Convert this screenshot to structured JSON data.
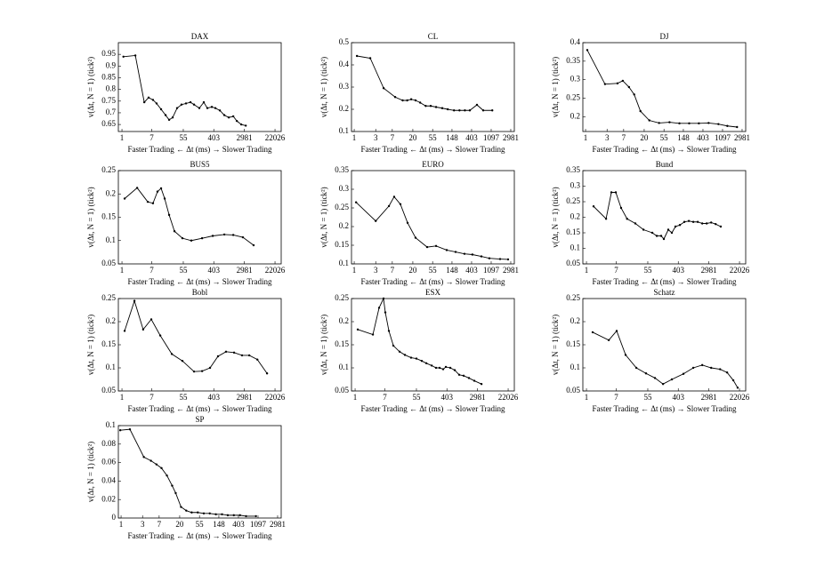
{
  "chart_data": [
    {
      "type": "line",
      "title": "DAX",
      "xscale": "log",
      "color": "#000000",
      "x": [
        1.1,
        2.4,
        4.3,
        5.7,
        7.6,
        9.6,
        12.9,
        17.3,
        21.8,
        27.5,
        36.7,
        49,
        65.7,
        88,
        111,
        157,
        210,
        265,
        355,
        448,
        600,
        803,
        1075,
        1440,
        1818,
        2430,
        3260
      ],
      "values": [
        0.94,
        0.945,
        0.745,
        0.765,
        0.755,
        0.74,
        0.715,
        0.69,
        0.67,
        0.68,
        0.72,
        0.735,
        0.74,
        0.745,
        0.735,
        0.72,
        0.745,
        0.72,
        0.725,
        0.72,
        0.71,
        0.69,
        0.68,
        0.685,
        0.665,
        0.65,
        0.645
      ],
      "xlim": [
        0.79,
        33000
      ],
      "xticks": [
        1,
        7,
        55,
        403,
        2981,
        22026
      ],
      "ylim": [
        0.62,
        1.0
      ],
      "yticks": [
        0.65,
        0.7,
        0.75,
        0.8,
        0.85,
        0.9,
        0.95
      ],
      "x_label": "Faster Trading ← Δt (ms) → Slower Trading",
      "y_label": "v(Δt, N = 1) (tick²)"
    },
    {
      "type": "line",
      "title": "CL",
      "xscale": "log",
      "color": "#000000",
      "x": [
        1.15,
        2.27,
        4.5,
        8.1,
        11.9,
        15,
        18.4,
        23,
        29.1,
        38.6,
        49.9,
        65.6,
        90,
        119,
        164,
        217,
        286,
        368,
        530,
        730,
        1160
      ],
      "values": [
        0.44,
        0.43,
        0.295,
        0.255,
        0.24,
        0.24,
        0.245,
        0.24,
        0.23,
        0.215,
        0.215,
        0.21,
        0.205,
        0.2,
        0.195,
        0.195,
        0.195,
        0.195,
        0.22,
        0.195,
        0.195
      ],
      "xlim": [
        0.87,
        3580
      ],
      "xticks": [
        1,
        3,
        7,
        20,
        55,
        148,
        403,
        1097,
        2981
      ],
      "ylim": [
        0.1,
        0.5
      ],
      "yticks": [
        0.1,
        0.2,
        0.3,
        0.4,
        0.5
      ],
      "x_label": "Faster Trading ← Δt (ms) → Slower Trading",
      "y_label": "v(Δt, N = 1) (tick²)"
    },
    {
      "type": "line",
      "title": "DJ",
      "xscale": "log",
      "color": "#000000",
      "x": [
        1.09,
        2.7,
        5.1,
        6.7,
        9.2,
        12,
        16.5,
        26,
        42.8,
        73,
        121,
        199,
        327,
        538,
        888,
        1400,
        2300
      ],
      "values": [
        0.38,
        0.288,
        0.29,
        0.297,
        0.28,
        0.26,
        0.215,
        0.19,
        0.183,
        0.185,
        0.182,
        0.182,
        0.182,
        0.183,
        0.18,
        0.175,
        0.172
      ],
      "xlim": [
        0.87,
        3580
      ],
      "xticks": [
        1,
        3,
        7,
        20,
        55,
        148,
        403,
        1097,
        2981
      ],
      "ylim": [
        0.16,
        0.4
      ],
      "yticks": [
        0.2,
        0.25,
        0.3,
        0.35,
        0.4
      ],
      "x_label": "Faster Trading ← Δt (ms) → Slower Trading",
      "y_label": "v(Δt, N = 1) (tick²)"
    },
    {
      "type": "line",
      "title": "BUS5",
      "xscale": "log",
      "color": "#000000",
      "x": [
        1.19,
        2.7,
        5.4,
        7.6,
        10.2,
        12.9,
        16.3,
        21.8,
        30.9,
        52,
        93,
        188,
        377,
        803,
        1440,
        2700,
        5440
      ],
      "values": [
        0.19,
        0.213,
        0.183,
        0.18,
        0.205,
        0.212,
        0.19,
        0.155,
        0.12,
        0.105,
        0.1,
        0.105,
        0.11,
        0.113,
        0.112,
        0.107,
        0.09
      ],
      "xlim": [
        0.79,
        33000
      ],
      "xticks": [
        1,
        7,
        55,
        403,
        2981,
        22026
      ],
      "ylim": [
        0.05,
        0.25
      ],
      "yticks": [
        0.05,
        0.1,
        0.15,
        0.2,
        0.25
      ],
      "x_label": "Faster Trading ← Δt (ms) → Slower Trading",
      "y_label": "v(Δt, N = 1) (tick²)"
    },
    {
      "type": "line",
      "title": "EURO",
      "xscale": "log",
      "color": "#000000",
      "x": [
        1.1,
        3.0,
        5.9,
        7.7,
        10.6,
        15.3,
        23,
        41.6,
        65.6,
        113,
        178,
        280,
        420,
        665,
        1000,
        1730,
        2600
      ],
      "values": [
        0.265,
        0.215,
        0.255,
        0.28,
        0.26,
        0.21,
        0.17,
        0.145,
        0.148,
        0.137,
        0.132,
        0.127,
        0.125,
        0.12,
        0.115,
        0.113,
        0.112
      ],
      "xlim": [
        0.87,
        3580
      ],
      "xticks": [
        1,
        3,
        7,
        20,
        55,
        148,
        403,
        1097,
        2981
      ],
      "ylim": [
        0.1,
        0.35
      ],
      "yticks": [
        0.1,
        0.15,
        0.2,
        0.25,
        0.3,
        0.35
      ],
      "x_label": "Faster Trading ← Δt (ms) → Slower Trading",
      "y_label": "v(Δt, N = 1) (tick²)"
    },
    {
      "type": "line",
      "title": "Bund",
      "xscale": "log",
      "color": "#000000",
      "x": [
        1.59,
        3.6,
        5.1,
        6.8,
        9.6,
        14.2,
        24.4,
        41.5,
        73.9,
        98.8,
        132,
        157,
        210,
        265,
        335,
        448,
        600,
        803,
        1075,
        1440,
        1930,
        2580,
        3460,
        4630,
        6470
      ],
      "values": [
        0.235,
        0.195,
        0.28,
        0.28,
        0.23,
        0.195,
        0.18,
        0.16,
        0.15,
        0.14,
        0.14,
        0.13,
        0.16,
        0.15,
        0.17,
        0.175,
        0.185,
        0.188,
        0.185,
        0.185,
        0.18,
        0.18,
        0.183,
        0.178,
        0.17
      ],
      "xlim": [
        0.79,
        33000
      ],
      "xticks": [
        1,
        7,
        55,
        403,
        2981,
        22026
      ],
      "ylim": [
        0.05,
        0.35
      ],
      "yticks": [
        0.05,
        0.1,
        0.15,
        0.2,
        0.25,
        0.3,
        0.35
      ],
      "x_label": "Faster Trading ← Δt (ms) → Slower Trading",
      "y_label": "v(Δt, N = 1) (tick²)"
    },
    {
      "type": "line",
      "title": "Bobl",
      "xscale": "log",
      "color": "#000000",
      "x": [
        1.19,
        2.26,
        4.0,
        6.8,
        12.2,
        26,
        52,
        111,
        188,
        316,
        531,
        897,
        1520,
        2560,
        4100,
        6940,
        13100
      ],
      "values": [
        0.18,
        0.245,
        0.183,
        0.205,
        0.17,
        0.13,
        0.115,
        0.092,
        0.093,
        0.1,
        0.125,
        0.135,
        0.133,
        0.127,
        0.127,
        0.118,
        0.088
      ],
      "xlim": [
        0.79,
        33000
      ],
      "xticks": [
        1,
        7,
        55,
        403,
        2981,
        22026
      ],
      "ylim": [
        0.05,
        0.25
      ],
      "yticks": [
        0.05,
        0.1,
        0.15,
        0.2,
        0.25
      ],
      "x_label": "Faster Trading ← Δt (ms) → Slower Trading",
      "y_label": "v(Δt, N = 1) (tick²)"
    },
    {
      "type": "line",
      "title": "ESX",
      "xscale": "log",
      "color": "#000000",
      "x": [
        1.19,
        3.2,
        4.8,
        6.4,
        7.2,
        9.1,
        12.2,
        18.3,
        25.9,
        38.8,
        55,
        78,
        105,
        149,
        198,
        250,
        316,
        376,
        503,
        672,
        900,
        1200,
        1700,
        2420,
        3860
      ],
      "values": [
        0.183,
        0.172,
        0.23,
        0.25,
        0.22,
        0.18,
        0.148,
        0.135,
        0.128,
        0.122,
        0.12,
        0.115,
        0.11,
        0.105,
        0.1,
        0.1,
        0.097,
        0.102,
        0.1,
        0.095,
        0.085,
        0.083,
        0.078,
        0.072,
        0.065
      ],
      "xlim": [
        0.79,
        33000
      ],
      "xticks": [
        1,
        7,
        55,
        403,
        2981,
        22026
      ],
      "ylim": [
        0.05,
        0.25
      ],
      "yticks": [
        0.05,
        0.1,
        0.15,
        0.2,
        0.25
      ],
      "x_label": "Faster Trading ← Δt (ms) → Slower Trading",
      "y_label": "v(Δt, N = 1) (tick²)"
    },
    {
      "type": "line",
      "title": "Schatz",
      "xscale": "log",
      "color": "#000000",
      "x": [
        1.5,
        4.3,
        7.2,
        12.9,
        26,
        49,
        88,
        149,
        265,
        565,
        1075,
        1930,
        3460,
        6200,
        9800,
        14700,
        19500
      ],
      "values": [
        0.177,
        0.16,
        0.18,
        0.128,
        0.1,
        0.088,
        0.078,
        0.065,
        0.075,
        0.087,
        0.1,
        0.106,
        0.1,
        0.097,
        0.09,
        0.073,
        0.057
      ],
      "xlim": [
        0.79,
        33000
      ],
      "xticks": [
        1,
        7,
        55,
        403,
        2981,
        22026
      ],
      "ylim": [
        0.05,
        0.25
      ],
      "yticks": [
        0.05,
        0.1,
        0.15,
        0.2,
        0.25
      ],
      "x_label": "Faster Trading ← Δt (ms) → Slower Trading",
      "y_label": "v(Δt, N = 1) (tick²)"
    },
    {
      "type": "line",
      "title": "SP",
      "xscale": "log",
      "color": "#000000",
      "x": [
        0.96,
        1.57,
        3.2,
        4.6,
        6.1,
        7.9,
        10.4,
        13.6,
        16.3,
        21.4,
        28,
        36.9,
        50.4,
        68.5,
        93,
        127,
        174,
        233,
        318,
        436,
        594,
        985
      ],
      "values": [
        0.095,
        0.096,
        0.066,
        0.062,
        0.058,
        0.054,
        0.046,
        0.035,
        0.027,
        0.012,
        0.008,
        0.006,
        0.006,
        0.005,
        0.005,
        0.004,
        0.004,
        0.003,
        0.003,
        0.003,
        0.002,
        0.002
      ],
      "xlim": [
        0.87,
        3580
      ],
      "xticks": [
        1,
        3,
        7,
        20,
        55,
        148,
        403,
        1097,
        2981
      ],
      "ylim": [
        0,
        0.1
      ],
      "yticks": [
        0,
        0.02,
        0.04,
        0.06,
        0.08,
        0.1
      ],
      "x_label": "Faster Trading ← Δt (ms) → Slower Trading",
      "y_label": "v(Δt, N = 1) (tick²)"
    }
  ]
}
